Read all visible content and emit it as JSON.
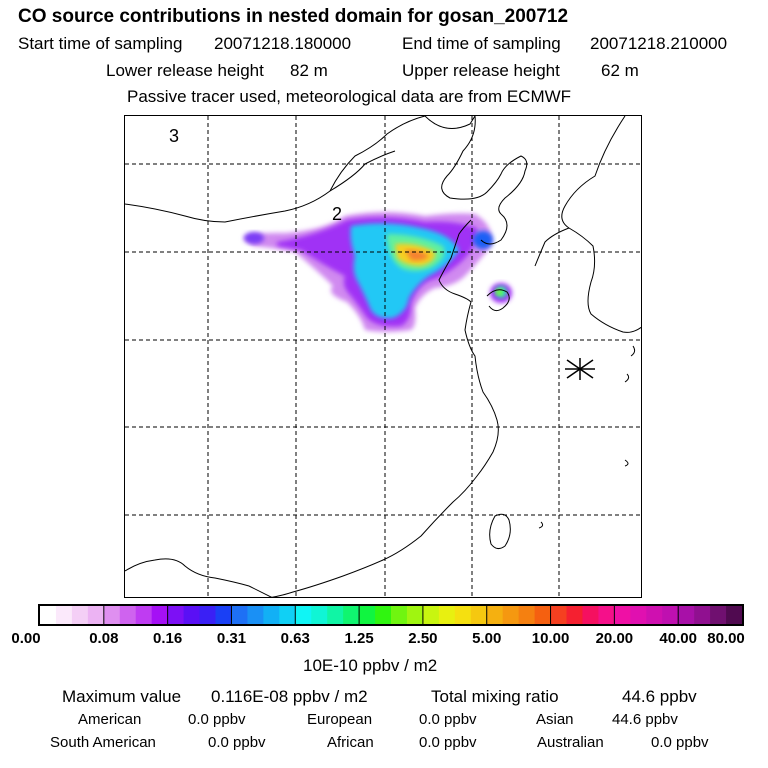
{
  "header": {
    "title": "CO  source contributions in nested domain for gosan_200712",
    "start_label": "Start time of sampling",
    "start_value": "20071218.180000",
    "end_label": "End time of sampling",
    "end_value": "20071218.210000",
    "lower_label": "Lower release height",
    "lower_value": "82 m",
    "upper_label": "Upper release height",
    "upper_value": "62 m",
    "note": "Passive tracer used, meteorological data are from ECMWF"
  },
  "map": {
    "labels": [
      "3",
      "2"
    ],
    "receptor_marker": "asterisk-icon"
  },
  "colorbar": {
    "ticks": [
      "0.00",
      "0.08",
      "0.16",
      "0.31",
      "0.63",
      "1.25",
      "2.50",
      "5.00",
      "10.00",
      "20.00",
      "40.00",
      "80.00"
    ],
    "unit": "10E-10 ppbv / m2",
    "colors": [
      "#ffffff",
      "#fbe9fb",
      "#f4cff6",
      "#ecb3f3",
      "#df8ff0",
      "#cf63ef",
      "#bf3cf2",
      "#a510f5",
      "#7d10f5",
      "#5a10f5",
      "#3a20f5",
      "#1a40f5",
      "#1e70f5",
      "#1a90f5",
      "#12b0f5",
      "#10d0f5",
      "#10f5f5",
      "#10f5d5",
      "#10f5a5",
      "#10f570",
      "#10f540",
      "#30f510",
      "#70f510",
      "#a0f510",
      "#c8f510",
      "#e8f010",
      "#f5e010",
      "#f5c810",
      "#f5b010",
      "#f59810",
      "#f58010",
      "#f56010",
      "#f54020",
      "#f52030",
      "#f51060",
      "#f5108a",
      "#ef10a5",
      "#e010b0",
      "#cf10b0",
      "#bf10b0",
      "#a810a8",
      "#901090",
      "#701070",
      "#500a50"
    ]
  },
  "stats": {
    "max_label": "Maximum value",
    "max_value": "0.116E-08 ppbv / m2",
    "total_label": "Total mixing ratio",
    "total_value": "44.6 ppbv",
    "regions": [
      {
        "name": "American",
        "value": "0.0 ppbv"
      },
      {
        "name": "European",
        "value": "0.0 ppbv"
      },
      {
        "name": "Asian",
        "value": "44.6 ppbv"
      },
      {
        "name": "South American",
        "value": "0.0 ppbv"
      },
      {
        "name": "African",
        "value": "0.0 ppbv"
      },
      {
        "name": "Australian",
        "value": "0.0 ppbv"
      }
    ]
  }
}
